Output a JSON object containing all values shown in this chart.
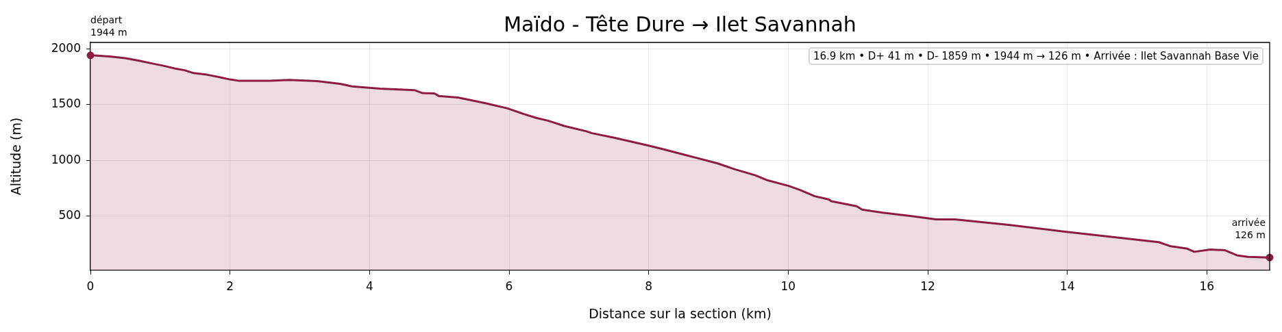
{
  "chart_data": {
    "type": "area",
    "title": "Maïdo - Tête Dure → Ilet Savannah",
    "xlabel": "Distance sur la section (km)",
    "ylabel": "Altitude (m)",
    "x": [
      0,
      0.1,
      0.3,
      0.5,
      0.7,
      0.89,
      1.05,
      1.22,
      1.35,
      1.48,
      1.67,
      1.85,
      2.0,
      2.12,
      2.57,
      2.85,
      3.25,
      3.58,
      3.75,
      4.15,
      4.65,
      4.76,
      4.93,
      4.99,
      5.27,
      5.66,
      5.97,
      6.22,
      6.39,
      6.56,
      6.79,
      7.12,
      7.18,
      7.52,
      7.97,
      8.2,
      8.52,
      8.99,
      9.23,
      9.53,
      9.69,
      10.0,
      10.16,
      10.38,
      10.58,
      10.62,
      10.98,
      11.06,
      11.36,
      11.79,
      12.12,
      12.39,
      13.16,
      13.97,
      14.52,
      15.31,
      15.47,
      15.72,
      15.82,
      16.05,
      16.26,
      16.43,
      16.59,
      16.9
    ],
    "values": [
      1944,
      1941,
      1932,
      1918,
      1895,
      1870,
      1850,
      1824,
      1810,
      1784,
      1770,
      1748,
      1727,
      1716,
      1716,
      1723,
      1712,
      1687,
      1665,
      1644,
      1630,
      1604,
      1601,
      1579,
      1565,
      1514,
      1468,
      1414,
      1381,
      1356,
      1309,
      1259,
      1245,
      1201,
      1137,
      1101,
      1049,
      972,
      920,
      865,
      823,
      771,
      736,
      677,
      649,
      632,
      587,
      556,
      528,
      497,
      469,
      469,
      420,
      358,
      319,
      264,
      229,
      205,
      177,
      198,
      191,
      146,
      132,
      126
    ],
    "color": "#8c1c42",
    "marker": "none",
    "line_style": "solid",
    "xlim": [
      0,
      16.9
    ],
    "xticks": [
      0,
      2,
      4,
      6,
      8,
      10,
      12,
      14,
      16
    ],
    "ylim": [
      10,
      2060
    ],
    "yticks": [
      500,
      1000,
      1500,
      2000
    ],
    "grid": true,
    "annotations": [
      {
        "text": "départ\n1944 m",
        "x": 0,
        "y": 1944
      },
      {
        "text": "arrivée\n126 m",
        "x": 16.9,
        "y": 126
      },
      "16.9 km • D+ 41 m • D- 1859 m • 1944 m → 126 m • Arrivée : Ilet Savannah Base Vie"
    ]
  }
}
